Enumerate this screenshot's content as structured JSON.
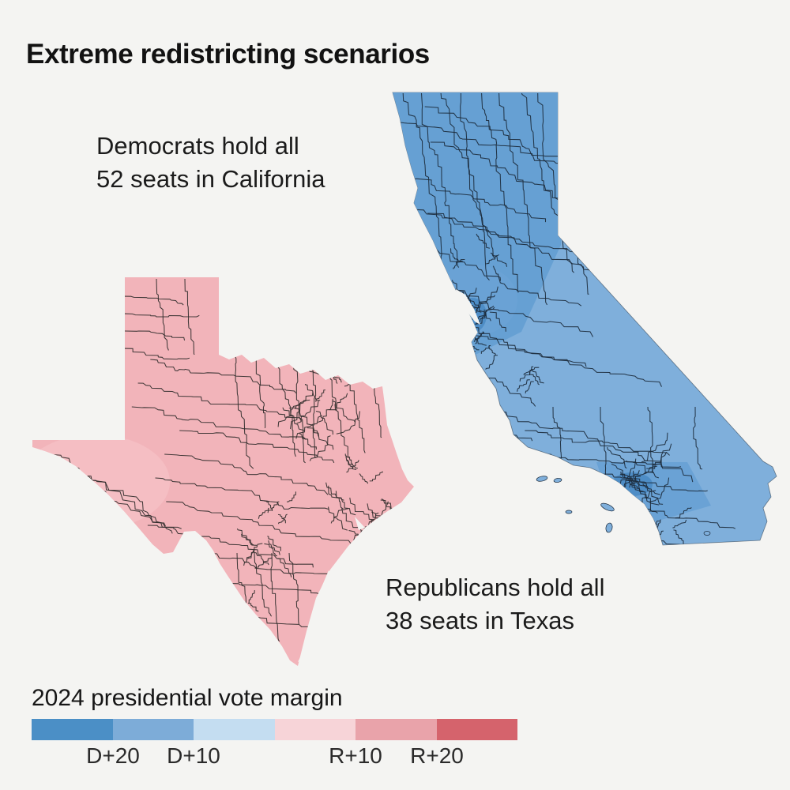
{
  "title": "Extreme redistricting scenarios",
  "background": "#F4F4F2",
  "annotations": {
    "california": {
      "line1": "Democrats hold all",
      "line2": "52 seats in California"
    },
    "texas": {
      "line1": "Republicans hold all",
      "line2": "38 seats in Texas"
    }
  },
  "legend": {
    "title": "2024 presidential vote margin",
    "labels": [
      "D+20",
      "D+10",
      "R+10",
      "R+20"
    ],
    "swatches": [
      {
        "name": "dem-more-than-20",
        "color": "#4B8FC6"
      },
      {
        "name": "dem-10-to-20",
        "color": "#7DACD8"
      },
      {
        "name": "dem-0-to-10",
        "color": "#C4DDF1"
      },
      {
        "name": "rep-0-to-10",
        "color": "#F7D4D8"
      },
      {
        "name": "rep-10-to-20",
        "color": "#E9A3AA"
      },
      {
        "name": "rep-more-than-20",
        "color": "#D5636C"
      }
    ]
  },
  "maps": {
    "california": {
      "label": "California",
      "fill_base": "#7FAFDB",
      "fill_north": "#66A0D3",
      "fill_medium": "#6AA2D5",
      "fill_dark": "#4E8DC6",
      "line_color": "#1C2B3C"
    },
    "texas": {
      "label": "Texas",
      "fill_base": "#F2B4BA",
      "fill_light": "#F5BEC3",
      "line_color": "#322E2D"
    }
  }
}
